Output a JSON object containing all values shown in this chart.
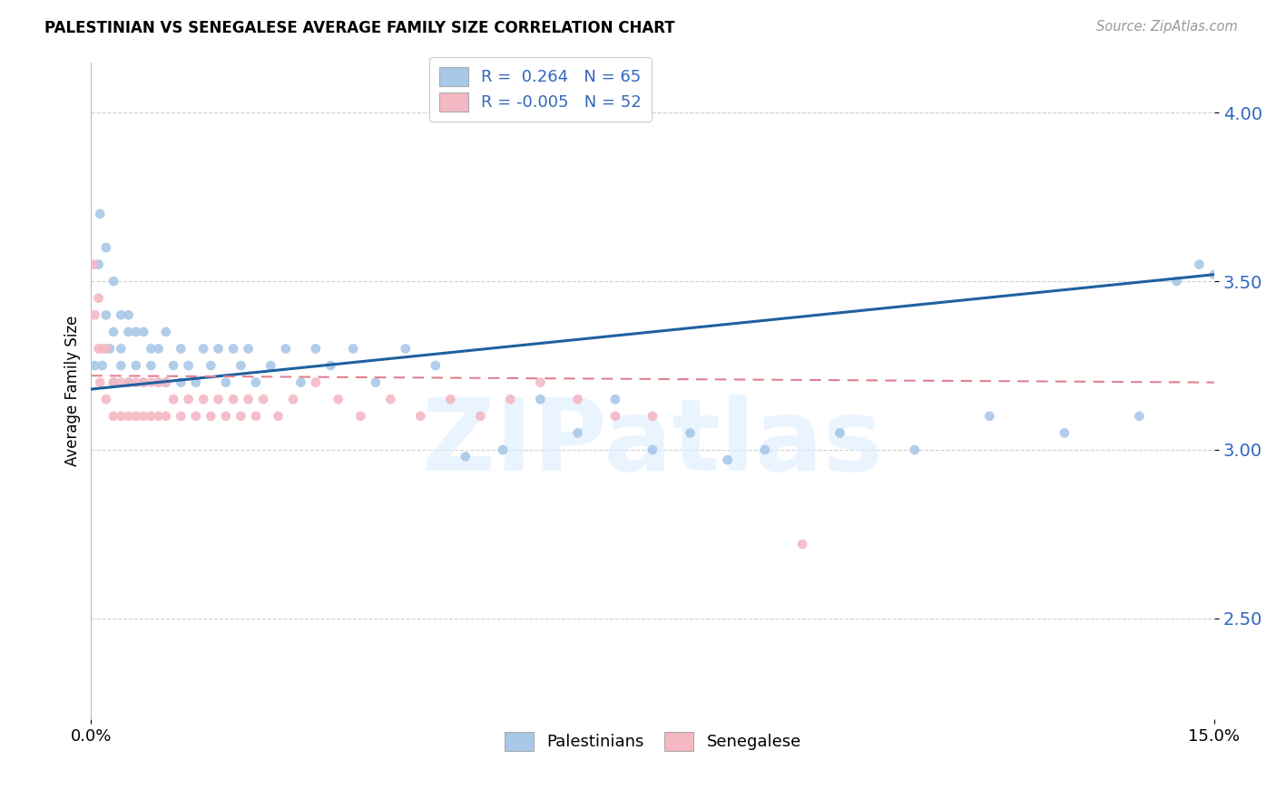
{
  "title": "PALESTINIAN VS SENEGALESE AVERAGE FAMILY SIZE CORRELATION CHART",
  "source": "Source: ZipAtlas.com",
  "ylabel": "Average Family Size",
  "xlim": [
    0.0,
    0.15
  ],
  "ylim": [
    2.2,
    4.15
  ],
  "yticks": [
    2.5,
    3.0,
    3.5,
    4.0
  ],
  "watermark_text": "ZIPatlas",
  "blue_color": "#a8c8e8",
  "pink_color": "#f4b8c4",
  "line_blue": "#2060a0",
  "line_pink": "#e08090",
  "R_blue": 0.264,
  "N_blue": 65,
  "R_pink": -0.005,
  "N_pink": 52,
  "blue_x": [
    0.0005,
    0.001,
    0.0012,
    0.0015,
    0.002,
    0.002,
    0.0025,
    0.003,
    0.003,
    0.003,
    0.004,
    0.004,
    0.004,
    0.005,
    0.005,
    0.005,
    0.006,
    0.006,
    0.007,
    0.007,
    0.008,
    0.008,
    0.009,
    0.009,
    0.01,
    0.01,
    0.011,
    0.012,
    0.012,
    0.013,
    0.014,
    0.015,
    0.016,
    0.017,
    0.018,
    0.019,
    0.02,
    0.021,
    0.022,
    0.024,
    0.026,
    0.028,
    0.03,
    0.032,
    0.035,
    0.038,
    0.042,
    0.046,
    0.05,
    0.055,
    0.06,
    0.065,
    0.07,
    0.075,
    0.08,
    0.085,
    0.09,
    0.1,
    0.11,
    0.12,
    0.13,
    0.14,
    0.145,
    0.148,
    0.15
  ],
  "blue_y": [
    3.25,
    3.55,
    3.7,
    3.25,
    3.4,
    3.6,
    3.3,
    3.2,
    3.35,
    3.5,
    3.25,
    3.4,
    3.3,
    3.2,
    3.35,
    3.4,
    3.25,
    3.35,
    3.2,
    3.35,
    3.25,
    3.3,
    3.2,
    3.3,
    3.2,
    3.35,
    3.25,
    3.2,
    3.3,
    3.25,
    3.2,
    3.3,
    3.25,
    3.3,
    3.2,
    3.3,
    3.25,
    3.3,
    3.2,
    3.25,
    3.3,
    3.2,
    3.3,
    3.25,
    3.3,
    3.2,
    3.3,
    3.25,
    2.98,
    3.0,
    3.15,
    3.05,
    3.15,
    3.0,
    3.05,
    2.97,
    3.0,
    3.05,
    3.0,
    3.1,
    3.05,
    3.1,
    3.5,
    3.55,
    3.52
  ],
  "pink_x": [
    0.0003,
    0.0005,
    0.001,
    0.001,
    0.0012,
    0.0015,
    0.002,
    0.002,
    0.003,
    0.003,
    0.004,
    0.004,
    0.005,
    0.005,
    0.006,
    0.006,
    0.007,
    0.007,
    0.008,
    0.008,
    0.009,
    0.009,
    0.01,
    0.01,
    0.011,
    0.012,
    0.013,
    0.014,
    0.015,
    0.016,
    0.017,
    0.018,
    0.019,
    0.02,
    0.021,
    0.022,
    0.023,
    0.025,
    0.027,
    0.03,
    0.033,
    0.036,
    0.04,
    0.044,
    0.048,
    0.052,
    0.056,
    0.06,
    0.065,
    0.07,
    0.075,
    0.095
  ],
  "pink_y": [
    3.55,
    3.4,
    3.3,
    3.45,
    3.2,
    3.3,
    3.15,
    3.3,
    3.1,
    3.2,
    3.1,
    3.2,
    3.1,
    3.2,
    3.1,
    3.2,
    3.1,
    3.2,
    3.1,
    3.2,
    3.1,
    3.2,
    3.1,
    3.2,
    3.15,
    3.1,
    3.15,
    3.1,
    3.15,
    3.1,
    3.15,
    3.1,
    3.15,
    3.1,
    3.15,
    3.1,
    3.15,
    3.1,
    3.15,
    3.2,
    3.15,
    3.1,
    3.15,
    3.1,
    3.15,
    3.1,
    3.15,
    3.2,
    3.15,
    3.1,
    3.1,
    2.72
  ]
}
